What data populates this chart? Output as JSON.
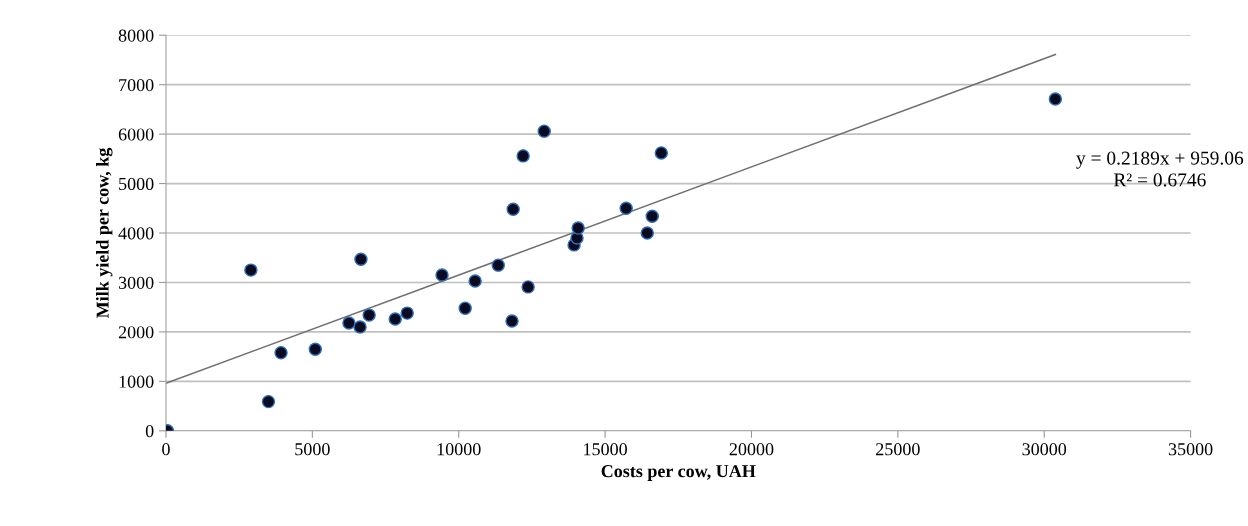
{
  "chart_data": {
    "type": "scatter",
    "xlabel": "Costs per cow, UAH",
    "ylabel": "Milk yield per cow, kg",
    "xlim": [
      0,
      35000
    ],
    "xticks": [
      0,
      5000,
      10000,
      15000,
      20000,
      25000,
      30000,
      35000
    ],
    "ylim": [
      0,
      8000
    ],
    "yticks": [
      0,
      1000,
      2000,
      3000,
      4000,
      5000,
      6000,
      7000,
      8000
    ],
    "grid": "y",
    "legend": false,
    "marker": "circle",
    "series": [
      {
        "color": "#0a0a20",
        "x": [
          50,
          2900,
          3500,
          3930,
          5100,
          6250,
          6630,
          6660,
          6940,
          7830,
          8240,
          9430,
          10220,
          10560,
          11350,
          11820,
          11860,
          12200,
          12920,
          12370,
          13940,
          14040,
          14080,
          15720,
          16440,
          16610,
          16920,
          30380
        ],
        "values": [
          0,
          3250,
          590,
          1580,
          1650,
          2180,
          2100,
          3470,
          2340,
          2260,
          2380,
          3150,
          2480,
          3030,
          3350,
          2220,
          4480,
          5560,
          6060,
          2910,
          3760,
          3900,
          4100,
          4500,
          4000,
          4340,
          5620,
          6710
        ]
      },
      {
        "type": "line",
        "color": "#707070",
        "marker": "none",
        "line_style": "solid",
        "x": [
          0,
          30380
        ],
        "values": [
          960,
          7610
        ]
      }
    ],
    "annotations": [
      "y = 0.2189x + 959.06",
      "R² = 0.6746"
    ]
  }
}
